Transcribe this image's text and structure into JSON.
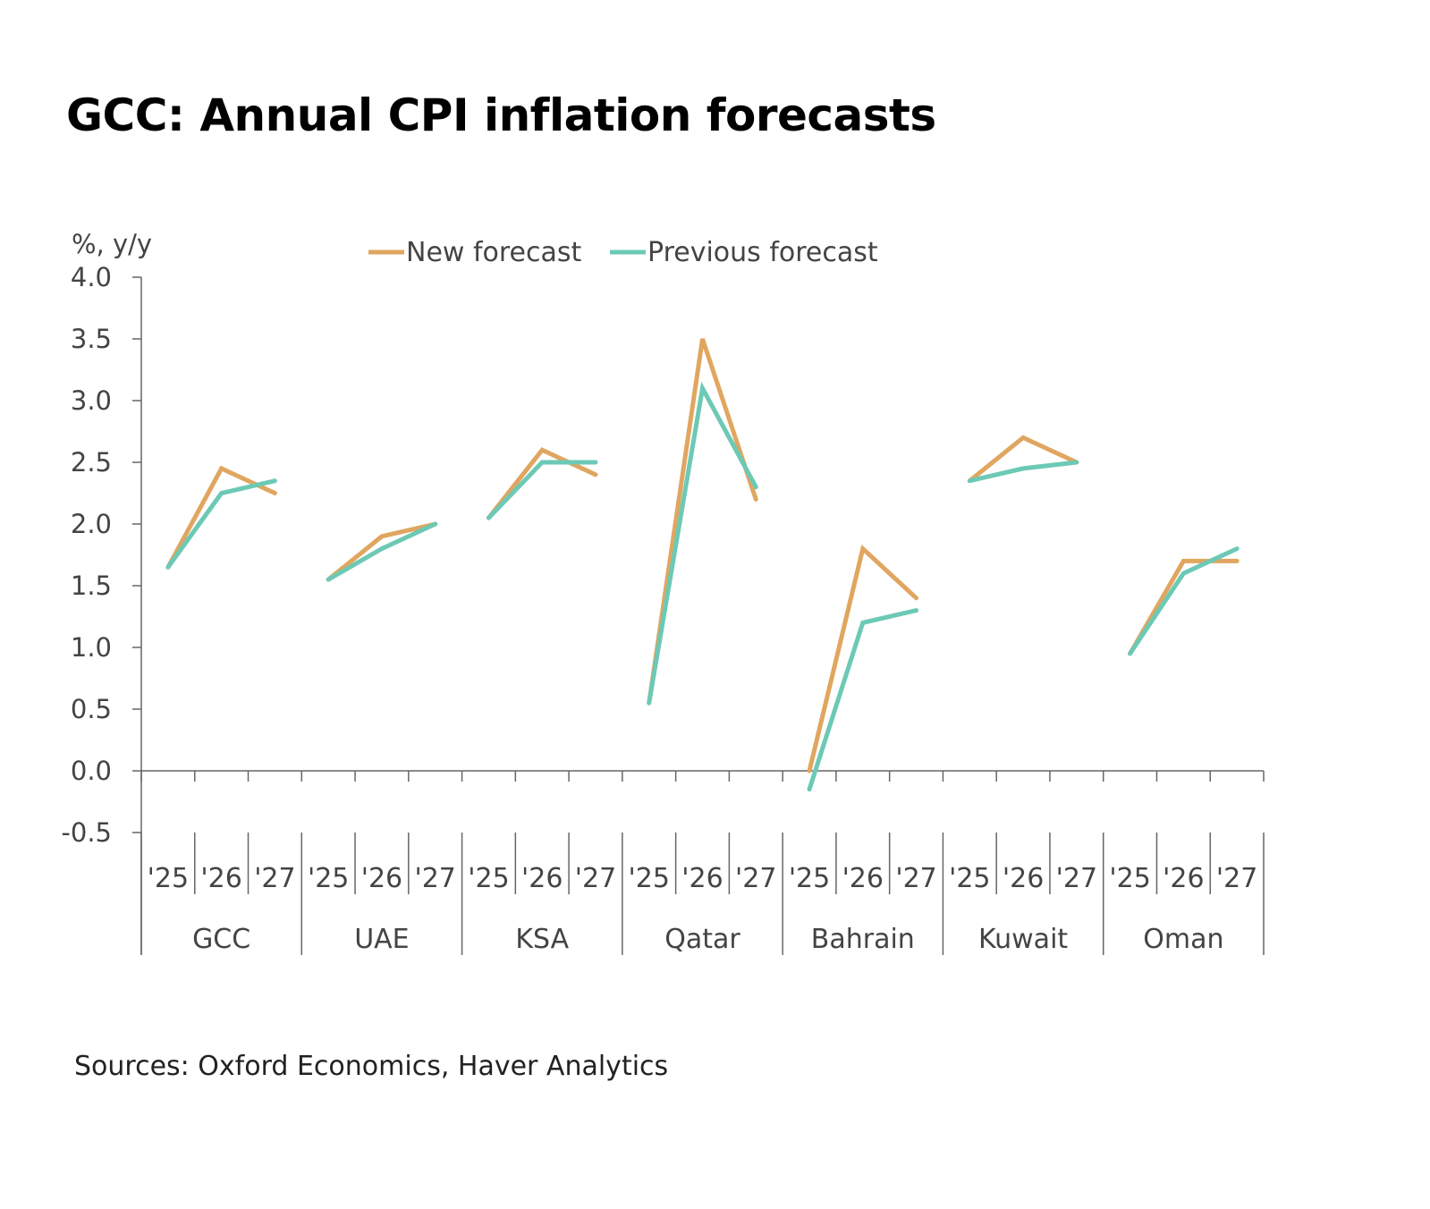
{
  "title": "GCC: Annual CPI inflation forecasts",
  "source": "Sources: Oxford Economics, Haver Analytics",
  "chart_data": {
    "type": "line",
    "title": "GCC: Annual CPI inflation forecasts",
    "ylabel": "%, y/y",
    "ylim": [
      -0.5,
      4.0
    ],
    "yticks": [
      "4.0",
      "3.5",
      "3.0",
      "2.5",
      "2.0",
      "1.5",
      "1.0",
      "0.5",
      "0.0",
      "-0.5"
    ],
    "grid": false,
    "legend_placement": "top",
    "groups": [
      "GCC",
      "UAE",
      "KSA",
      "Qatar",
      "Bahrain",
      "Kuwait",
      "Oman"
    ],
    "years": [
      "'25",
      "'26",
      "'27"
    ],
    "series": [
      {
        "name": "New forecast",
        "color": "#E0A660",
        "values": [
          [
            1.65,
            2.45,
            2.25
          ],
          [
            1.55,
            1.9,
            2.0
          ],
          [
            2.05,
            2.6,
            2.4
          ],
          [
            0.55,
            3.5,
            2.2
          ],
          [
            0.0,
            1.8,
            1.4
          ],
          [
            2.35,
            2.7,
            2.5
          ],
          [
            0.95,
            1.7,
            1.7
          ]
        ]
      },
      {
        "name": "Previous forecast",
        "color": "#6CC9B5",
        "values": [
          [
            1.65,
            2.25,
            2.35
          ],
          [
            1.55,
            1.8,
            2.0
          ],
          [
            2.05,
            2.5,
            2.5
          ],
          [
            0.55,
            3.1,
            2.3
          ],
          [
            -0.15,
            1.2,
            1.3
          ],
          [
            2.35,
            2.45,
            2.5
          ],
          [
            0.95,
            1.6,
            1.8
          ]
        ]
      }
    ]
  }
}
